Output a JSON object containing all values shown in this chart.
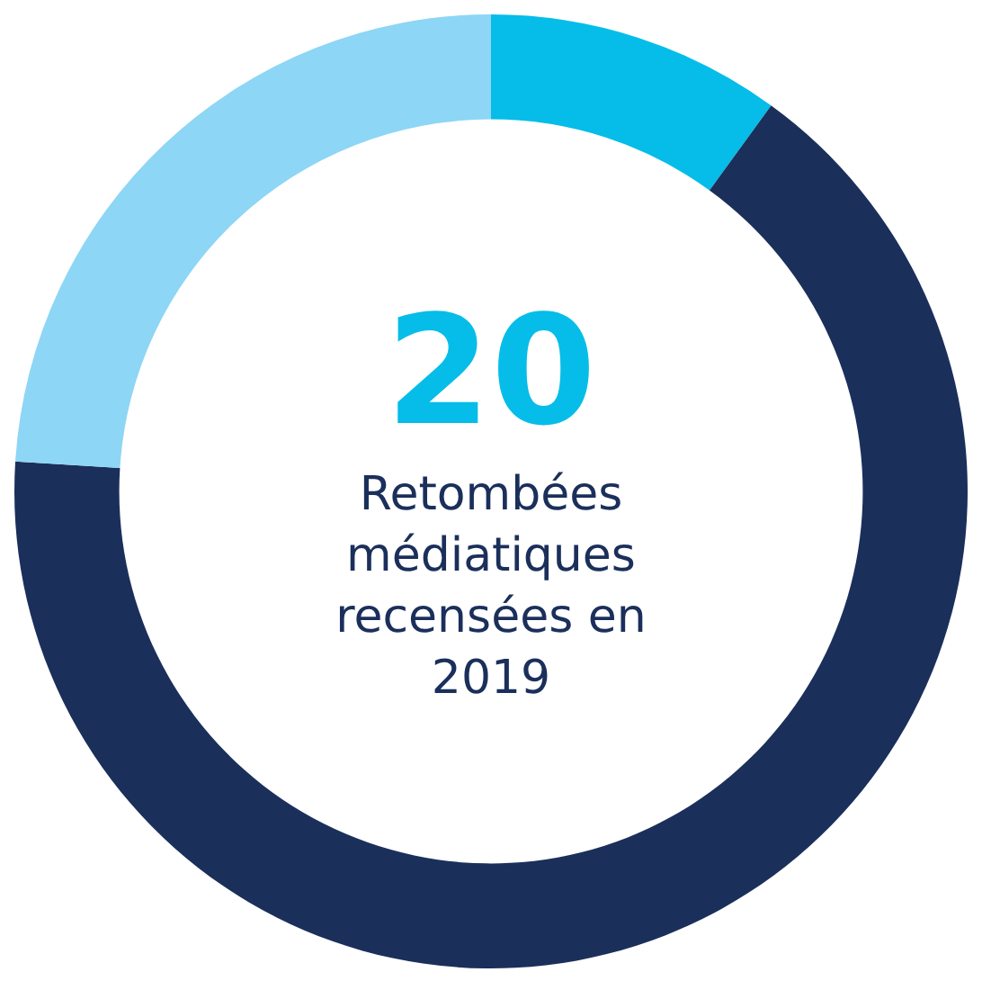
{
  "chart_data": {
    "type": "donut",
    "categories": [
      null,
      null,
      null
    ],
    "values": [
      10,
      66,
      24
    ],
    "colors": [
      "#05bde8",
      "#1b2f5b",
      "#8dd6f5"
    ],
    "annotations": [
      "20",
      "Retombées médiatiques recensées en 2019"
    ]
  }
}
